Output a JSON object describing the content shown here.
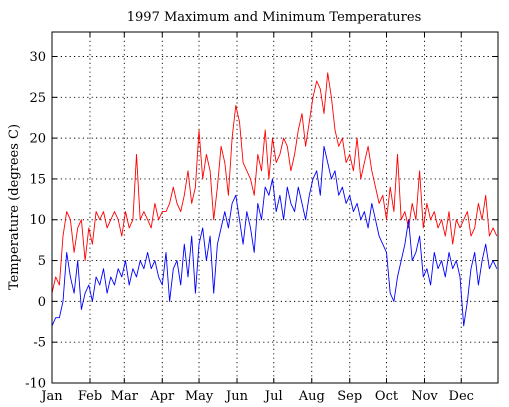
{
  "chart_data": {
    "type": "line",
    "title": "1997 Maximum and Minimum Temperatures",
    "xlabel": "",
    "ylabel": "Temperature (degrees C)",
    "xlim": [
      1,
      365
    ],
    "ylim": [
      -10,
      33
    ],
    "yticks": [
      -10,
      -5,
      0,
      5,
      10,
      15,
      20,
      25,
      30
    ],
    "grid": true,
    "months": [
      {
        "label": "Jan",
        "day": 1
      },
      {
        "label": "Feb",
        "day": 32
      },
      {
        "label": "Mar",
        "day": 60
      },
      {
        "label": "Apr",
        "day": 91
      },
      {
        "label": "May",
        "day": 121
      },
      {
        "label": "Jun",
        "day": 152
      },
      {
        "label": "Jul",
        "day": 182
      },
      {
        "label": "Aug",
        "day": 213
      },
      {
        "label": "Sep",
        "day": 244
      },
      {
        "label": "Oct",
        "day": 274
      },
      {
        "label": "Nov",
        "day": 305
      },
      {
        "label": "Dec",
        "day": 335
      }
    ],
    "series": [
      {
        "color": "#ff0000",
        "x": [
          1,
          4,
          7,
          10,
          13,
          16,
          19,
          22,
          25,
          28,
          31,
          34,
          37,
          40,
          43,
          46,
          49,
          52,
          55,
          58,
          61,
          64,
          67,
          70,
          73,
          76,
          79,
          82,
          85,
          88,
          91,
          94,
          97,
          100,
          103,
          106,
          109,
          112,
          115,
          118,
          121,
          124,
          127,
          130,
          133,
          136,
          139,
          142,
          145,
          148,
          151,
          154,
          157,
          160,
          163,
          166,
          169,
          172,
          175,
          178,
          181,
          184,
          187,
          190,
          193,
          196,
          199,
          202,
          205,
          208,
          211,
          214,
          217,
          220,
          223,
          226,
          229,
          232,
          235,
          238,
          241,
          244,
          247,
          250,
          253,
          256,
          259,
          262,
          265,
          268,
          271,
          274,
          277,
          280,
          283,
          286,
          289,
          292,
          295,
          298,
          301,
          304,
          307,
          310,
          313,
          316,
          319,
          322,
          325,
          328,
          331,
          334,
          337,
          340,
          343,
          346,
          349,
          352,
          355,
          358,
          361,
          364
        ],
        "values": [
          1,
          3,
          2,
          8,
          11,
          10,
          6,
          9,
          10,
          5,
          9,
          7,
          11,
          10,
          11,
          9,
          10,
          11,
          10,
          8,
          11,
          9,
          10,
          18,
          10,
          11,
          10,
          9,
          12,
          10,
          11,
          11,
          12,
          14,
          12,
          11,
          13,
          16,
          12,
          14,
          21,
          15,
          18,
          16,
          10,
          14,
          19,
          17,
          13,
          20,
          24,
          22,
          17,
          16,
          15,
          13,
          18,
          16,
          21,
          15,
          20,
          17,
          18,
          20,
          19,
          16,
          18,
          21,
          23,
          19,
          22,
          25,
          27,
          26,
          23,
          28,
          25,
          21,
          19,
          20,
          17,
          18,
          16,
          20,
          15,
          17,
          19,
          16,
          14,
          12,
          13,
          10,
          14,
          11,
          18,
          10,
          11,
          9,
          12,
          10,
          16,
          9,
          12,
          10,
          11,
          9,
          10,
          8,
          11,
          7,
          10,
          9,
          10,
          11,
          8,
          9,
          12,
          10,
          13,
          8,
          9,
          8
        ]
      },
      {
        "color": "#0000ff",
        "x": [
          1,
          4,
          7,
          10,
          13,
          16,
          19,
          22,
          25,
          28,
          31,
          34,
          37,
          40,
          43,
          46,
          49,
          52,
          55,
          58,
          61,
          64,
          67,
          70,
          73,
          76,
          79,
          82,
          85,
          88,
          91,
          94,
          97,
          100,
          103,
          106,
          109,
          112,
          115,
          118,
          121,
          124,
          127,
          130,
          133,
          136,
          139,
          142,
          145,
          148,
          151,
          154,
          157,
          160,
          163,
          166,
          169,
          172,
          175,
          178,
          181,
          184,
          187,
          190,
          193,
          196,
          199,
          202,
          205,
          208,
          211,
          214,
          217,
          220,
          223,
          226,
          229,
          232,
          235,
          238,
          241,
          244,
          247,
          250,
          253,
          256,
          259,
          262,
          265,
          268,
          271,
          274,
          277,
          280,
          283,
          286,
          289,
          292,
          295,
          298,
          301,
          304,
          307,
          310,
          313,
          316,
          319,
          322,
          325,
          328,
          331,
          334,
          337,
          340,
          343,
          346,
          349,
          352,
          355,
          358,
          361,
          364
        ],
        "values": [
          -3,
          -2,
          -2,
          0,
          6,
          3,
          1,
          5,
          -1,
          1,
          2,
          0,
          3,
          2,
          4,
          1,
          3,
          2,
          4,
          3,
          5,
          2,
          4,
          3,
          5,
          4,
          6,
          4,
          5,
          3,
          2,
          6,
          0,
          4,
          5,
          2,
          7,
          3,
          8,
          1,
          7,
          9,
          5,
          8,
          1,
          7,
          9,
          11,
          9,
          12,
          13,
          10,
          7,
          11,
          9,
          6,
          12,
          10,
          14,
          13,
          15,
          11,
          13,
          10,
          14,
          12,
          11,
          14,
          12,
          10,
          13,
          15,
          16,
          13,
          19,
          17,
          15,
          16,
          13,
          14,
          12,
          13,
          11,
          12,
          10,
          11,
          9,
          12,
          10,
          8,
          7,
          6,
          1,
          0,
          3,
          5,
          7,
          10,
          5,
          6,
          8,
          3,
          4,
          2,
          6,
          4,
          5,
          3,
          6,
          4,
          5,
          3,
          -3,
          0,
          4,
          6,
          2,
          5,
          7,
          4,
          5,
          4
        ]
      }
    ]
  }
}
